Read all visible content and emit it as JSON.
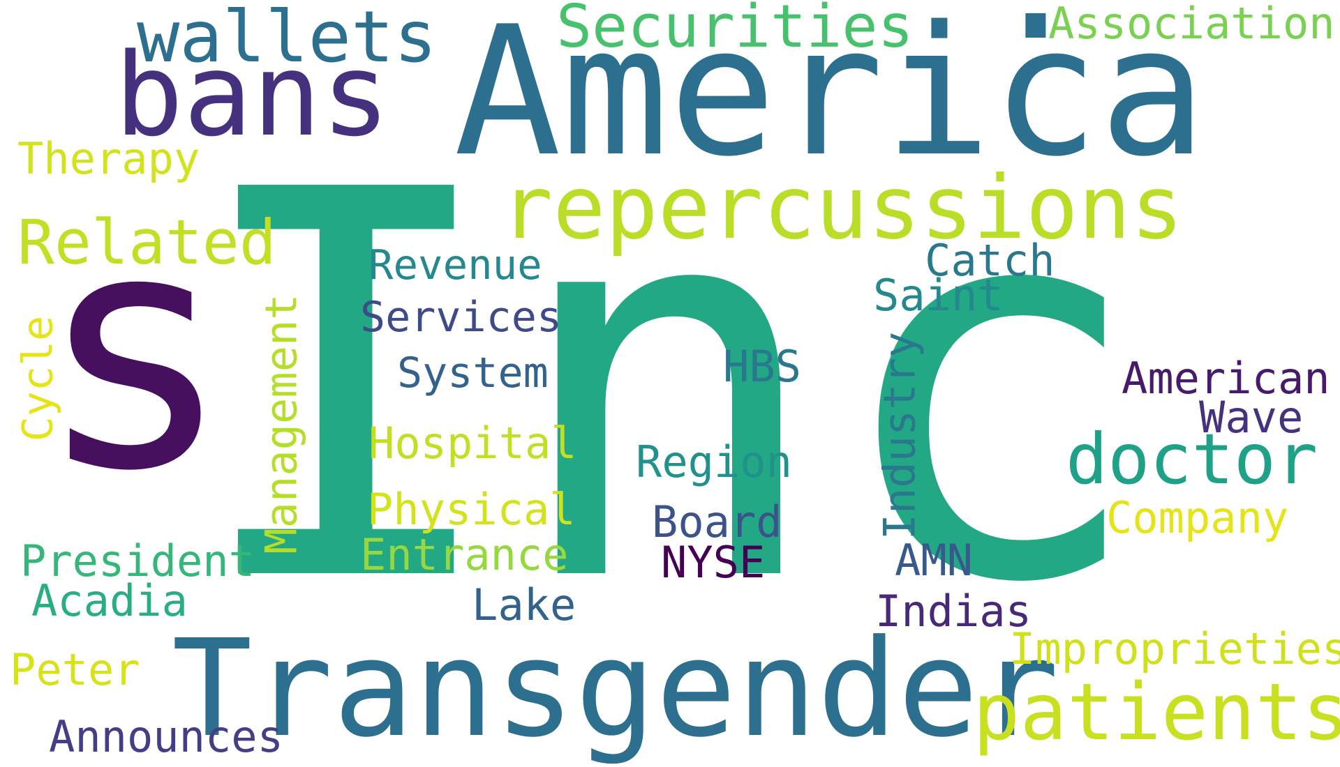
{
  "words": [
    {
      "id": "inc",
      "text": "Inc",
      "color": "#22A884"
    },
    {
      "id": "s",
      "text": "s",
      "color": "#46105F"
    },
    {
      "id": "america",
      "text": "America",
      "color": "#2C6F8E"
    },
    {
      "id": "transgender",
      "text": "Transgender",
      "color": "#2C6F8E"
    },
    {
      "id": "bans",
      "text": "bans",
      "color": "#46317E"
    },
    {
      "id": "wallets",
      "text": "wallets",
      "color": "#2C6F8E"
    },
    {
      "id": "securities",
      "text": "Securities",
      "color": "#47C16E"
    },
    {
      "id": "dot",
      "text": ".",
      "color": "#2C6F8E"
    },
    {
      "id": "association",
      "text": "Association",
      "color": "#7AD151"
    },
    {
      "id": "repercussions",
      "text": "repercussions",
      "color": "#BADE28"
    },
    {
      "id": "therapy",
      "text": "Therapy",
      "color": "#D2E21B"
    },
    {
      "id": "related",
      "text": "Related",
      "color": "#C2DF23"
    },
    {
      "id": "revenue",
      "text": "Revenue",
      "color": "#23898E"
    },
    {
      "id": "services",
      "text": "Services",
      "color": "#3E4A89"
    },
    {
      "id": "system",
      "text": "System",
      "color": "#33638D"
    },
    {
      "id": "hospital",
      "text": "Hospital",
      "color": "#C2DF23"
    },
    {
      "id": "physical",
      "text": "Physical",
      "color": "#D2E21B"
    },
    {
      "id": "entrance",
      "text": "Entrance",
      "color": "#95D840"
    },
    {
      "id": "lake",
      "text": "Lake",
      "color": "#33638D"
    },
    {
      "id": "cycle",
      "text": "Cycle",
      "color": "#E5E419"
    },
    {
      "id": "management",
      "text": "Management",
      "color": "#B5DE2B"
    },
    {
      "id": "president",
      "text": "President",
      "color": "#35B779"
    },
    {
      "id": "acadia",
      "text": "Acadia",
      "color": "#29AF7F"
    },
    {
      "id": "peter",
      "text": "Peter",
      "color": "#D8E219"
    },
    {
      "id": "announces",
      "text": "Announces",
      "color": "#433E85"
    },
    {
      "id": "catch",
      "text": "Catch",
      "color": "#2A788E"
    },
    {
      "id": "saint",
      "text": "Saint",
      "color": "#23898E"
    },
    {
      "id": "hbs",
      "text": "HBS",
      "color": "#2A788E"
    },
    {
      "id": "industry",
      "text": "Industry",
      "color": "#2A788E"
    },
    {
      "id": "region",
      "text": "Region",
      "color": "#21918C"
    },
    {
      "id": "board",
      "text": "Board",
      "color": "#3B528B"
    },
    {
      "id": "nyse",
      "text": "NYSE",
      "color": "#440154"
    },
    {
      "id": "amn",
      "text": "AMN",
      "color": "#38598C"
    },
    {
      "id": "indias",
      "text": "Indias",
      "color": "#482878"
    },
    {
      "id": "american",
      "text": "American",
      "color": "#481A6C"
    },
    {
      "id": "wave",
      "text": "Wave",
      "color": "#46317E"
    },
    {
      "id": "doctor",
      "text": "doctor",
      "color": "#1FA187"
    },
    {
      "id": "company",
      "text": "Company",
      "color": "#E5E419"
    },
    {
      "id": "improprieties",
      "text": "Improprieties",
      "color": "#D0E11C"
    },
    {
      "id": "patients",
      "text": "patients",
      "color": "#C8E020"
    }
  ]
}
